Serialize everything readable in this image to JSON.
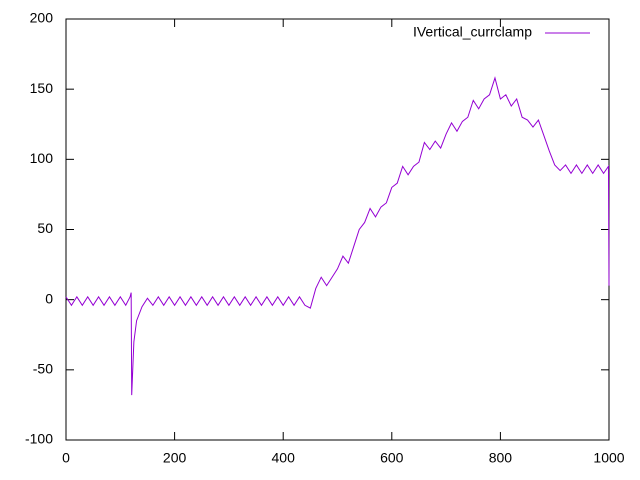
{
  "chart_data": {
    "type": "line",
    "x": [
      0,
      10,
      20,
      30,
      40,
      50,
      60,
      70,
      80,
      90,
      100,
      110,
      118,
      120,
      121,
      125,
      130,
      140,
      150,
      160,
      170,
      180,
      190,
      200,
      210,
      220,
      230,
      240,
      250,
      260,
      270,
      280,
      290,
      300,
      310,
      320,
      330,
      340,
      350,
      360,
      370,
      380,
      390,
      400,
      410,
      420,
      430,
      440,
      450,
      460,
      470,
      480,
      490,
      500,
      510,
      520,
      530,
      540,
      550,
      560,
      570,
      580,
      590,
      600,
      610,
      620,
      630,
      640,
      650,
      660,
      670,
      680,
      690,
      700,
      710,
      720,
      730,
      740,
      750,
      760,
      770,
      780,
      790,
      800,
      810,
      820,
      830,
      840,
      850,
      860,
      870,
      880,
      890,
      900,
      910,
      920,
      930,
      940,
      950,
      960,
      970,
      980,
      990,
      999,
      1000
    ],
    "series": [
      {
        "name": "IVertical_currclamp",
        "color": "#9400d3",
        "values": [
          2,
          -4,
          2,
          -4,
          2,
          -4,
          2,
          -4,
          2,
          -4,
          2,
          -4,
          2,
          5,
          -68,
          -30,
          -15,
          -5,
          1,
          -4,
          2,
          -4,
          2,
          -4,
          2,
          -4,
          2,
          -4,
          2,
          -4,
          2,
          -4,
          2,
          -4,
          2,
          -4,
          2,
          -4,
          2,
          -4,
          2,
          -4,
          2,
          -4,
          2,
          -4,
          2,
          -4,
          -6,
          8,
          16,
          10,
          16,
          22,
          31,
          26,
          38,
          50,
          55,
          65,
          59,
          66,
          69,
          80,
          83,
          95,
          89,
          95,
          98,
          112,
          107,
          113,
          108,
          118,
          126,
          120,
          127,
          130,
          142,
          136,
          143,
          146,
          158,
          143,
          146,
          138,
          143,
          130,
          128,
          123,
          128,
          117,
          106,
          96,
          92,
          96,
          90,
          96,
          90,
          96,
          90,
          96,
          90,
          95,
          10
        ]
      }
    ],
    "xlim": [
      0,
      1000
    ],
    "xticks": [
      0,
      200,
      400,
      600,
      800,
      1000
    ],
    "ylim": [
      -100,
      200
    ],
    "yticks": [
      -100,
      -50,
      0,
      50,
      100,
      150,
      200
    ],
    "legend": "top-right"
  }
}
